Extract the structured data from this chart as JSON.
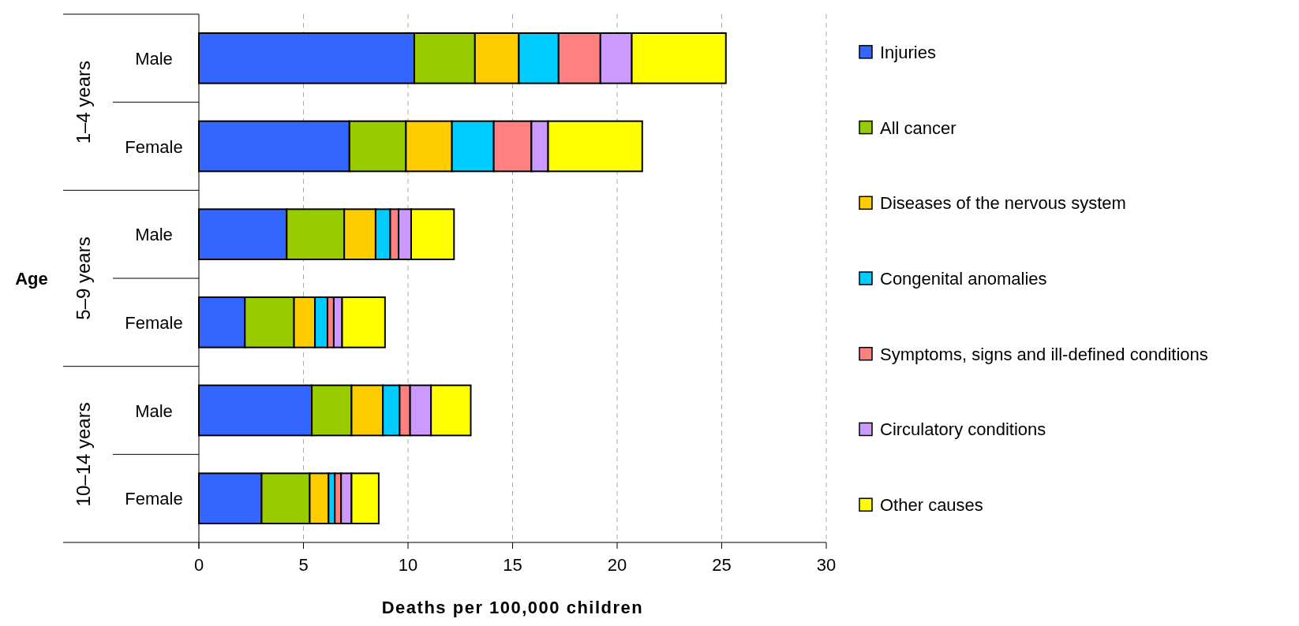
{
  "chart_data": {
    "type": "bar",
    "orientation": "horizontal",
    "stacked": true,
    "xlabel": "Deaths per 100,000 children",
    "ylabel": "Age",
    "categories": [
      "Male",
      "Female",
      "Male",
      "Female",
      "Male",
      "Female"
    ],
    "annotations": [
      "1–4 years",
      "5–9 years",
      "10–14 years"
    ],
    "series": [
      {
        "name": "Injuries",
        "color": "#3366ff",
        "values": [
          10.3,
          7.2,
          4.2,
          2.2,
          5.4,
          3.0
        ]
      },
      {
        "name": "All cancer",
        "color": "#99cc00",
        "values": [
          2.9,
          2.7,
          2.75,
          2.35,
          1.9,
          2.3
        ]
      },
      {
        "name": "Diseases of the nervous system",
        "color": "#ffcc00",
        "values": [
          2.1,
          2.2,
          1.5,
          1.0,
          1.5,
          0.9
        ]
      },
      {
        "name": "Congenital anomalies",
        "color": "#00ccff",
        "values": [
          1.9,
          2.0,
          0.7,
          0.6,
          0.8,
          0.3
        ]
      },
      {
        "name": "Symptoms, signs and ill-defined conditions",
        "color": "#ff8080",
        "values": [
          2.0,
          1.8,
          0.4,
          0.3,
          0.5,
          0.3
        ]
      },
      {
        "name": "Circulatory conditions",
        "color": "#cc99ff",
        "values": [
          1.5,
          0.8,
          0.6,
          0.4,
          1.0,
          0.5
        ]
      },
      {
        "name": "Other causes",
        "color": "#ffff00",
        "values": [
          4.5,
          4.5,
          2.05,
          2.05,
          1.9,
          1.3
        ]
      }
    ],
    "xlim": [
      0,
      30
    ],
    "xticks": [
      0,
      5,
      10,
      15,
      20,
      25,
      30
    ],
    "grid": "x",
    "legend": "right"
  }
}
